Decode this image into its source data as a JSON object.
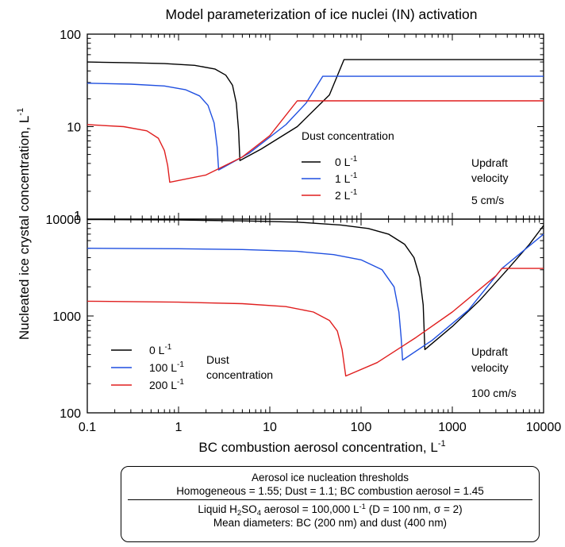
{
  "chart_data": [
    {
      "panel": "top",
      "type": "line",
      "title": "Model parameterization of ice nuclei (IN) activation",
      "xscale": "log",
      "yscale": "log",
      "xlim": [
        0.1,
        10000
      ],
      "ylim": [
        1,
        100
      ],
      "yticklabels": [
        "1",
        "10",
        "100"
      ],
      "legend_title": "Dust concentration",
      "legend_placement": "right-middle",
      "annotation": {
        "line1": "Updraft",
        "line2": "velocity",
        "speed": "5 cm/s"
      },
      "series": [
        {
          "name": "0 L",
          "unit_exp": "-1",
          "color": "#000000",
          "points": [
            [
              0.1,
              50
            ],
            [
              0.3,
              49
            ],
            [
              0.7,
              48
            ],
            [
              1.5,
              46
            ],
            [
              2.5,
              42
            ],
            [
              3.3,
              36
            ],
            [
              3.9,
              28
            ],
            [
              4.3,
              18
            ],
            [
              4.55,
              9
            ],
            [
              4.7,
              4.3
            ],
            [
              8,
              5.7
            ],
            [
              20,
              10
            ],
            [
              45,
              22
            ],
            [
              65,
              53
            ],
            [
              10000,
              53
            ]
          ]
        },
        {
          "name": "1 L",
          "unit_exp": "-1",
          "color": "#1f4fe0",
          "points": [
            [
              0.1,
              29.5
            ],
            [
              0.3,
              28.8
            ],
            [
              0.7,
              27.5
            ],
            [
              1.2,
              25
            ],
            [
              1.7,
              21.5
            ],
            [
              2.1,
              17
            ],
            [
              2.45,
              11
            ],
            [
              2.65,
              6
            ],
            [
              2.75,
              3.4
            ],
            [
              6,
              5.2
            ],
            [
              15,
              10.5
            ],
            [
              25,
              18
            ],
            [
              38,
              35
            ],
            [
              10000,
              35
            ]
          ]
        },
        {
          "name": "2 L",
          "unit_exp": "-1",
          "color": "#e01f1f",
          "points": [
            [
              0.1,
              10.5
            ],
            [
              0.25,
              10
            ],
            [
              0.45,
              9
            ],
            [
              0.6,
              7.5
            ],
            [
              0.7,
              5.5
            ],
            [
              0.76,
              3.8
            ],
            [
              0.8,
              2.5
            ],
            [
              2,
              3
            ],
            [
              5,
              4.7
            ],
            [
              10,
              8
            ],
            [
              20,
              19
            ],
            [
              10000,
              19
            ]
          ]
        }
      ]
    },
    {
      "panel": "bottom",
      "type": "line",
      "xscale": "log",
      "yscale": "log",
      "xlim": [
        0.1,
        10000
      ],
      "ylim": [
        100,
        10000
      ],
      "xlabel": "BC combustion aerosol concentration, L",
      "xlabel_exp": "-1",
      "ylabel": "Nucleated ice crystal concentration, L",
      "ylabel_exp": "-1",
      "xticklabels": [
        "0.1",
        "1",
        "10",
        "100",
        "1000",
        "10000"
      ],
      "yticklabels": [
        "100",
        "1000",
        "10000"
      ],
      "legend_extra": "Dust",
      "legend_extra2": "concentration",
      "legend_placement": "bottom-left",
      "annotation": {
        "line1": "Updraft",
        "line2": "velocity",
        "speed": "100 cm/s"
      },
      "series": [
        {
          "name": "0 L",
          "unit_exp": "-1",
          "color": "#000000",
          "points": [
            [
              0.1,
              9900
            ],
            [
              1,
              9800
            ],
            [
              5,
              9600
            ],
            [
              20,
              9300
            ],
            [
              60,
              8700
            ],
            [
              120,
              8000
            ],
            [
              200,
              7000
            ],
            [
              300,
              5500
            ],
            [
              380,
              4000
            ],
            [
              440,
              2500
            ],
            [
              480,
              1300
            ],
            [
              500,
              450
            ],
            [
              1000,
              780
            ],
            [
              2000,
              1450
            ],
            [
              4000,
              3000
            ],
            [
              7000,
              5500
            ],
            [
              10000,
              8600
            ]
          ]
        },
        {
          "name": "100 L",
          "unit_exp": "-1",
          "color": "#1f4fe0",
          "points": [
            [
              0.1,
              5000
            ],
            [
              1,
              4950
            ],
            [
              5,
              4850
            ],
            [
              20,
              4650
            ],
            [
              50,
              4300
            ],
            [
              100,
              3800
            ],
            [
              170,
              3000
            ],
            [
              230,
              2000
            ],
            [
              260,
              1100
            ],
            [
              275,
              600
            ],
            [
              285,
              350
            ],
            [
              600,
              560
            ],
            [
              1500,
              1150
            ],
            [
              3500,
              3100
            ],
            [
              10000,
              7000
            ]
          ]
        },
        {
          "name": "200 L",
          "unit_exp": "-1",
          "color": "#e01f1f",
          "points": [
            [
              0.1,
              1420
            ],
            [
              1,
              1390
            ],
            [
              5,
              1340
            ],
            [
              15,
              1250
            ],
            [
              30,
              1100
            ],
            [
              45,
              900
            ],
            [
              55,
              700
            ],
            [
              62,
              450
            ],
            [
              68,
              240
            ],
            [
              150,
              330
            ],
            [
              400,
              600
            ],
            [
              1000,
              1100
            ],
            [
              3000,
              2600
            ],
            [
              3500,
              3100
            ],
            [
              10000,
              3100
            ]
          ]
        }
      ]
    }
  ],
  "note": {
    "heading": "Aerosol ice nucleation thresholds",
    "thresholds": "Homogeneous = 1.55;  Dust = 1.1; BC combustion aerosol = 1.45",
    "liquid_prefix": "Liquid H",
    "liquid_sub1": "2",
    "liquid_mid": "SO",
    "liquid_sub2": "4",
    "liquid_mid2": " aerosol = 100,000 L",
    "liquid_exp": "-1",
    "liquid_suffix": " (D = 100 nm, σ = 2)",
    "diameters": "Mean diameters: BC (200 nm) and dust (400 nm)"
  }
}
